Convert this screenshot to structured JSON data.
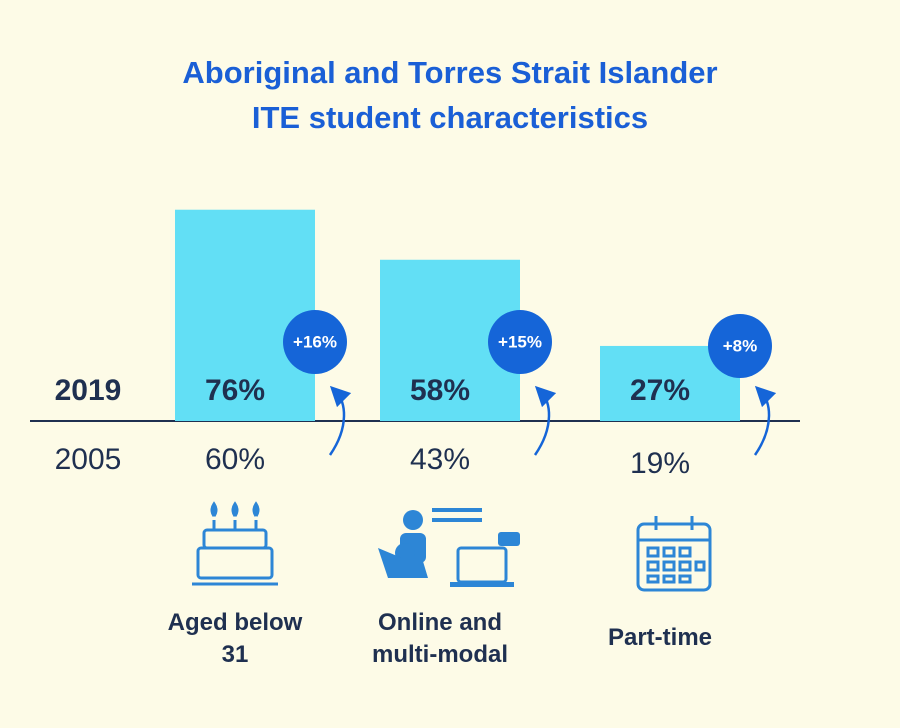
{
  "chart_data": {
    "type": "bar",
    "title": [
      "Aboriginal and Torres Strait Islander",
      "ITE student characteristics"
    ],
    "categories": [
      "Aged below 31",
      "Online and multi-modal",
      "Part-time"
    ],
    "series": [
      {
        "name": "2019",
        "color": "#62dff5",
        "values": [
          76,
          58,
          27
        ],
        "value_labels": [
          "76%",
          "58%",
          "27%"
        ]
      },
      {
        "name": "2005",
        "values": [
          60,
          43,
          19
        ],
        "value_labels": [
          "60%",
          "43%",
          "19%"
        ]
      }
    ],
    "changes": [
      16,
      15,
      8
    ],
    "change_labels": [
      "+16%",
      "+15%",
      "+8%"
    ]
  }
}
